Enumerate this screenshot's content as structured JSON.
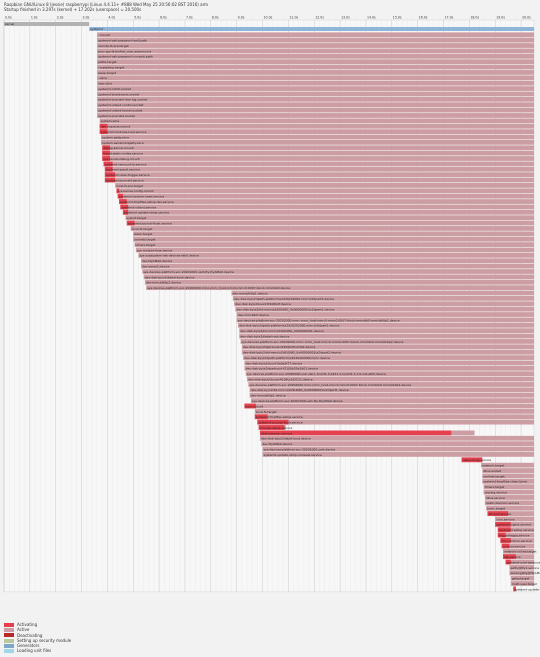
{
  "header": {
    "line1": "Raspbian GNU/Linux 8 (jessie) raspberrypi (Linux 4.4.11+ #888 Wed May 25 20:56:02 BST 2016) arm",
    "line2": "Startup finished in 3.297s (kernel) + 17.202s (userspace) = 20.500s"
  },
  "colors": {
    "activating": "#e5404d",
    "active": "#cc9ea3",
    "deactivating": "#b72a2a",
    "setting_up": "#b8c79c",
    "generators": "#7fa7ca",
    "loading": "#9fd6e8",
    "kernel": "#b3b3b3",
    "userspace": "#8fb6d6"
  },
  "timeline": {
    "ticks": [
      "0.0s",
      "1.0s",
      "2.0s",
      "3.0s",
      "4.0s",
      "5.0s",
      "6.0s",
      "7.0s",
      "8.0s",
      "9.0s",
      "10.0s",
      "11.0s",
      "12.0s",
      "13.0s",
      "14.0s",
      "15.0s",
      "16.0s",
      "17.0s",
      "18.0s",
      "19.0s",
      "20.0s"
    ]
  },
  "legend": [
    {
      "label": "Activating",
      "color_key": "activating"
    },
    {
      "label": "Active",
      "color_key": "active"
    },
    {
      "label": "Deactivating",
      "color_key": "deactivating"
    },
    {
      "label": "Setting up security module",
      "color_key": "setting_up"
    },
    {
      "label": "Generators",
      "color_key": "generators"
    },
    {
      "label": "Loading unit files",
      "color_key": "loading"
    }
  ],
  "chart_data": {
    "type": "gantt",
    "units": "s",
    "kernel": {
      "label": "kernel",
      "start": 0,
      "end": 3.297
    },
    "systemd": {
      "label": "systemd",
      "start": 3.297,
      "end": 20.5
    },
    "units_list": [
      {
        "label": "-.mount",
        "start": 3.6,
        "activating": 0,
        "end": 20.5
      },
      {
        "label": "systemd-ask-password-wall.path",
        "start": 3.6,
        "activating": 0,
        "end": 20.5
      },
      {
        "label": "remote-fs-pre.target",
        "start": 3.6,
        "activating": 0,
        "end": 20.5
      },
      {
        "label": "proc-sys-fs-binfmt_misc.automount",
        "start": 3.6,
        "activating": 0,
        "end": 20.5
      },
      {
        "label": "systemd-ask-password-console.path",
        "start": 3.6,
        "activating": 0,
        "end": 20.5
      },
      {
        "label": "paths.target",
        "start": 3.6,
        "activating": 0,
        "end": 20.5
      },
      {
        "label": "cryptsetup.target",
        "start": 3.6,
        "activating": 0,
        "end": 20.5
      },
      {
        "label": "swap.target",
        "start": 3.6,
        "activating": 0,
        "end": 20.5
      },
      {
        "label": "-.slice",
        "start": 3.6,
        "activating": 0,
        "end": 20.5
      },
      {
        "label": "user.slice",
        "start": 3.6,
        "activating": 0,
        "end": 20.5
      },
      {
        "label": "systemd-initctl.socket",
        "start": 3.6,
        "activating": 0,
        "end": 20.5
      },
      {
        "label": "systemd-shutdownd.socket",
        "start": 3.6,
        "activating": 0,
        "end": 20.5
      },
      {
        "label": "systemd-journald-dev-log.socket",
        "start": 3.6,
        "activating": 0,
        "end": 20.5
      },
      {
        "label": "systemd-udevd-control.socket",
        "start": 3.6,
        "activating": 0,
        "end": 20.5
      },
      {
        "label": "systemd-udevd-kernel.socket",
        "start": 3.6,
        "activating": 0,
        "end": 20.5
      },
      {
        "label": "systemd-journald.socket",
        "start": 3.6,
        "activating": 0,
        "end": 20.5
      },
      {
        "label": "system.slice",
        "start": 3.7,
        "activating": 0,
        "end": 20.5
      },
      {
        "label": "dev-mqueue.mount",
        "start": 3.7,
        "activating": 0.3,
        "end": 20.5
      },
      {
        "label": "systemd-modules-load.service",
        "start": 3.7,
        "activating": 0.3,
        "end": 20.5
      },
      {
        "label": "system-getty.slice",
        "start": 3.75,
        "activating": 0,
        "end": 20.5
      },
      {
        "label": "system-serial\\x2dgetty.slice",
        "start": 3.75,
        "activating": 0,
        "end": 20.5
      },
      {
        "label": "debug-kernel.mount",
        "start": 3.8,
        "activating": 0.3,
        "end": 20.5
      },
      {
        "label": "kmod-static-nodes.service",
        "start": 3.8,
        "activating": 0.3,
        "end": 20.5
      },
      {
        "label": "sys-kernel-debug.mount",
        "start": 3.8,
        "activating": 0.3,
        "end": 20.5
      },
      {
        "label": "systemd-remount-fs.service",
        "start": 3.85,
        "activating": 0.35,
        "end": 20.5
      },
      {
        "label": "systemd-sysctl.service",
        "start": 3.9,
        "activating": 0.3,
        "end": 20.5
      },
      {
        "label": "systemd-udev-trigger.service",
        "start": 3.9,
        "activating": 0.4,
        "end": 20.5
      },
      {
        "label": "systemd-journald.service",
        "start": 3.9,
        "activating": 0.4,
        "end": 20.5
      },
      {
        "label": "local-fs-pre.target",
        "start": 4.3,
        "activating": 0,
        "end": 20.5
      },
      {
        "label": "sys-kernel-config.mount",
        "start": 4.35,
        "activating": 0.1,
        "end": 20.5
      },
      {
        "label": "systemd-random-seed.service",
        "start": 4.4,
        "activating": 0.2,
        "end": 20.5
      },
      {
        "label": "systemd-tmpfiles-setup-dev.service",
        "start": 4.45,
        "activating": 0.3,
        "end": 20.5
      },
      {
        "label": "systemd-udevd.service",
        "start": 4.5,
        "activating": 0.3,
        "end": 20.5
      },
      {
        "label": "systemd-update-utmp.service",
        "start": 4.6,
        "activating": 0.2,
        "end": 20.5
      },
      {
        "label": "sysinit.target",
        "start": 4.7,
        "activating": 0,
        "end": 20.5
      },
      {
        "label": "systemd-journal-flush.service",
        "start": 4.75,
        "activating": 0.3,
        "end": 20.5
      },
      {
        "label": "local-fs.target",
        "start": 4.9,
        "activating": 0,
        "end": 20.5
      },
      {
        "label": "basic.target",
        "start": 5.0,
        "activating": 0,
        "end": 20.5
      },
      {
        "label": "sockets.target",
        "start": 5.0,
        "activating": 0,
        "end": 20.5
      },
      {
        "label": "timers.target",
        "start": 5.05,
        "activating": 0,
        "end": 20.5
      },
      {
        "label": "sys-module-fuse.device",
        "start": 5.1,
        "activating": 0,
        "end": 20.5
      },
      {
        "label": "sys-subsystem-net-devices-eth0.device",
        "start": 5.2,
        "activating": 0,
        "end": 20.5
      },
      {
        "label": "dev-ttyAMA0.device",
        "start": 5.3,
        "activating": 0,
        "end": 20.5
      },
      {
        "label": "dev-serial1.device",
        "start": 5.3,
        "activating": 0,
        "end": 20.5
      },
      {
        "label": "sys-devices-platform-soc-20201000.uart-tty-ttyAMA0.device",
        "start": 5.35,
        "activating": 0,
        "end": 20.5
      },
      {
        "label": "dev-disk-by\\x2dlabel-boot.device",
        "start": 5.4,
        "activating": 0,
        "end": 20.5
      },
      {
        "label": "dev-mmcblk0p2.device",
        "start": 5.45,
        "activating": 0,
        "end": 20.5
      },
      {
        "label": "sys-devices-platform-soc-20202000.mmc-mmc_host-mmc0-mmc0:0007-block-mmcblk0.device",
        "start": 5.5,
        "activating": 0,
        "end": 20.5
      },
      {
        "label": "dev-mmcblk0p1.device",
        "start": 8.8,
        "activating": 0,
        "end": 20.5
      },
      {
        "label": "dev-disk-by\\x2dpath-platform\\x2d20202000.mmc\\x2dpart2.device",
        "start": 8.85,
        "activating": 0,
        "end": 20.5
      },
      {
        "label": "dev-disk-by\\x2duuid-f2100b2f.device",
        "start": 8.9,
        "activating": 0,
        "end": 20.5
      },
      {
        "label": "dev-disk-by\\x2did-mmc\\x2dSU08G_0x00000001\\x2dpart1.device",
        "start": 8.95,
        "activating": 0,
        "end": 20.5
      },
      {
        "label": "dev-mmcblk0.device",
        "start": 9.0,
        "activating": 0,
        "end": 20.5
      },
      {
        "label": "sys-devices-platform-soc-20202000.mmc-mmc_host-mmc0-mmc0:0007-block-mmcblk0-mmcblk0p1.device",
        "start": 9.0,
        "activating": 0,
        "end": 20.5
      },
      {
        "label": "dev-disk-by\\x2dpath-platform\\x2d20202000.mmc\\x2dpart1.device",
        "start": 9.05,
        "activating": 0,
        "end": 20.5
      },
      {
        "label": "dev-disk-by\\x2did-mmc\\x2dSU08G_0x00000001.device",
        "start": 9.1,
        "activating": 0,
        "end": 20.5
      },
      {
        "label": "dev-disk-by\\x2dlabel-root.device",
        "start": 9.1,
        "activating": 0,
        "end": 20.5
      },
      {
        "label": "sys-devices-platform-soc-20202000.mmc-mmc_host-mmc0-mmc0:0007-block-mmcblk0-mmcblk0p2.device",
        "start": 9.15,
        "activating": 0,
        "end": 20.5
      },
      {
        "label": "dev-disk-by\\x2dpartuuid-f2100b2f\\x2d02.device",
        "start": 9.2,
        "activating": 0,
        "end": 20.5
      },
      {
        "label": "dev-disk-by\\x2did-mmc\\x2dSU08G_0x00000001\\x2dpart2.device",
        "start": 9.2,
        "activating": 0,
        "end": 20.5
      },
      {
        "label": "dev-disk-by\\x2dpath-platform\\x2d20202000.mmc.device",
        "start": 9.25,
        "activating": 0,
        "end": 20.5
      },
      {
        "label": "dev-disk-by\\x2duuid-0a5e2f77.device",
        "start": 9.3,
        "activating": 0,
        "end": 20.5
      },
      {
        "label": "dev-disk-by\\x2dpartuuid-f2100b2f\\x2d01.device",
        "start": 9.3,
        "activating": 0,
        "end": 20.5
      },
      {
        "label": "sys-devices-platform-soc-20980000.usb-usb1-1\\x2d1-1\\x2d1.1-1\\x2d1.1:1.0-net-eth0.device",
        "start": 9.35,
        "activating": 0,
        "end": 20.5
      },
      {
        "label": "dev-disk-by\\x2duuid-A01B\\x2d2C21.device",
        "start": 9.4,
        "activating": 0,
        "end": 20.5
      },
      {
        "label": "sys-devices-platform-soc-20202000.mmc-mmc_host-mmc0-mmc0:0007-block-mmcblk0-mmcblk0p1.device",
        "start": 9.45,
        "activating": 0,
        "end": 20.5
      },
      {
        "label": "dev-disk-by\\x2did-mmc\\x2dSU08G_0x00000001\\x2dpart1.device",
        "start": 9.5,
        "activating": 0,
        "end": 20.5
      },
      {
        "label": "dev-mmcblk0p1.device",
        "start": 9.5,
        "activating": 0,
        "end": 20.5
      },
      {
        "label": "sys-devices-platform-soc-20201000.uart-tty-ttyAMA0.device",
        "start": 9.55,
        "activating": 0,
        "end": 20.5
      },
      {
        "label": "boot.mount",
        "start": 9.3,
        "activating": 0.45,
        "end": 20.5
      },
      {
        "label": "local-fs.target",
        "start": 9.7,
        "activating": 0,
        "end": 20.5
      },
      {
        "label": "systemd-tmpfiles-setup.service",
        "start": 9.7,
        "activating": 0.5,
        "end": 20.5
      },
      {
        "label": "systemd-journal-flush.service",
        "start": 9.8,
        "activating": 1.2,
        "end": 20.5
      },
      {
        "label": "console-setup.service",
        "start": 9.85,
        "activating": 1.0,
        "end": 10.9
      },
      {
        "label": "rtkit-daemon.service",
        "start": 9.9,
        "activating": 7.4,
        "end": 18.2
      },
      {
        "label": "dev-disk-by\\x2dlabel-boot.device",
        "start": 9.9,
        "activating": 0,
        "end": 20.5
      },
      {
        "label": "dev-ttyAMA0.device",
        "start": 9.95,
        "activating": 0,
        "end": 20.5
      },
      {
        "label": "sys-devices-platform-soc-20201000.uart.device",
        "start": 10.0,
        "activating": 0,
        "end": 20.5
      },
      {
        "label": "systemd-update-utmp-runlevel.service",
        "start": 10.0,
        "activating": 0,
        "end": 20.5
      },
      {
        "label": "networking.service",
        "start": 17.7,
        "activating": 0.8,
        "end": 18.5
      },
      {
        "label": "network.target",
        "start": 18.45,
        "activating": 0,
        "end": 20.5
      },
      {
        "label": "dbus.socket",
        "start": 18.5,
        "activating": 0,
        "end": 20.5
      },
      {
        "label": "sockets.target",
        "start": 18.5,
        "activating": 0,
        "end": 20.5
      },
      {
        "label": "systemd-tmpfiles-clean.timer",
        "start": 18.5,
        "activating": 0,
        "end": 20.5
      },
      {
        "label": "timers.target",
        "start": 18.55,
        "activating": 0,
        "end": 20.5
      },
      {
        "label": "rsyslog.service",
        "start": 18.55,
        "activating": 0,
        "end": 20.5
      },
      {
        "label": "dbus.service",
        "start": 18.6,
        "activating": 0,
        "end": 20.5
      },
      {
        "label": "avahi-daemon.service",
        "start": 18.6,
        "activating": 0,
        "end": 20.5
      },
      {
        "label": "basic.target",
        "start": 18.65,
        "activating": 0,
        "end": 20.5
      },
      {
        "label": "dhcpcd.service",
        "start": 18.7,
        "activating": 0.8,
        "end": 20.5
      },
      {
        "label": "cron.service",
        "start": 19.0,
        "activating": 0,
        "end": 20.5
      },
      {
        "label": "systemd-logind.service",
        "start": 19.0,
        "activating": 0.6,
        "end": 20.5
      },
      {
        "label": "keyboard-setup.service",
        "start": 19.1,
        "activating": 0.5,
        "end": 20.5
      },
      {
        "label": "triggerhappy.service",
        "start": 19.1,
        "activating": 0.3,
        "end": 20.5
      },
      {
        "label": "nfs-common.service",
        "start": 19.2,
        "activating": 0.4,
        "end": 20.5
      },
      {
        "label": "rc-local.service",
        "start": 19.25,
        "activating": 0.3,
        "end": 20.5
      },
      {
        "label": "network-online.target",
        "start": 19.3,
        "activating": 0,
        "end": 20.5
      },
      {
        "label": "ntp.service",
        "start": 19.3,
        "activating": 0.5,
        "end": 20.5
      },
      {
        "label": "systemd-user-sessions.service",
        "start": 19.4,
        "activating": 0.2,
        "end": 20.5
      },
      {
        "label": "getty@tty1.service",
        "start": 19.55,
        "activating": 0,
        "end": 20.5
      },
      {
        "label": "serial-getty@ttyAMA0.service",
        "start": 19.55,
        "activating": 0,
        "end": 20.5
      },
      {
        "label": "getty.target",
        "start": 19.6,
        "activating": 0,
        "end": 20.5
      },
      {
        "label": "multi-user.target",
        "start": 19.6,
        "activating": 0,
        "end": 20.5
      },
      {
        "label": "systemd-update-utmp-runlevel.service",
        "start": 19.7,
        "activating": 0.1,
        "end": 19.8
      }
    ]
  }
}
